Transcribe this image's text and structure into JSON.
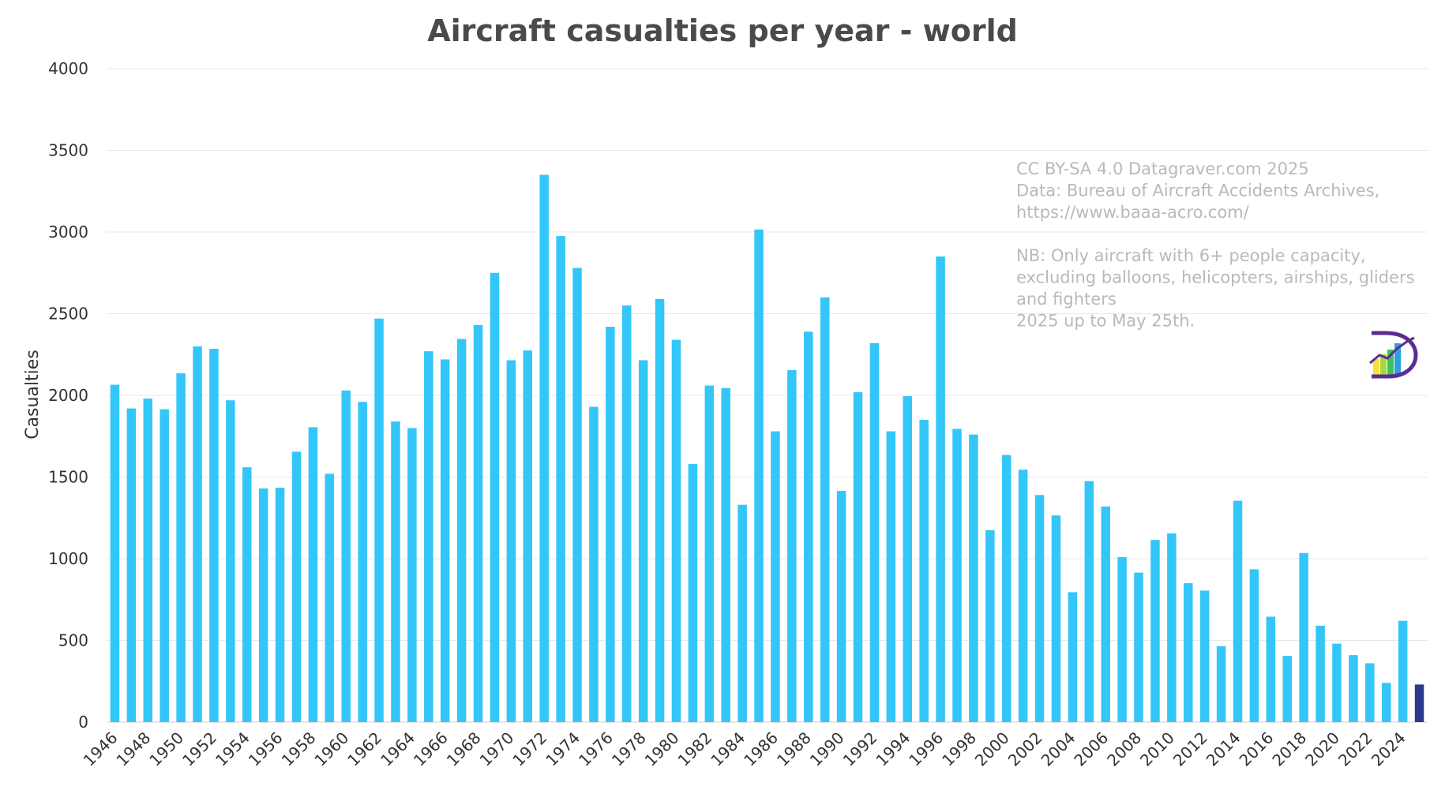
{
  "chart_data": {
    "type": "bar",
    "title": "Aircraft casualties per year - world",
    "ylabel": "Casualties",
    "xlabel": "",
    "ylim": [
      0,
      4000
    ],
    "yticks": [
      0,
      500,
      1000,
      1500,
      2000,
      2500,
      3000,
      3500,
      4000
    ],
    "xtick_every": 2,
    "grid": true,
    "colors": {
      "bar": "#33c6f9",
      "partial_year_bar": "#2b3a8f",
      "grid": "#e8e8e8"
    },
    "partial_category": "2025",
    "categories": [
      "1946",
      "1947",
      "1948",
      "1949",
      "1950",
      "1951",
      "1952",
      "1953",
      "1954",
      "1955",
      "1956",
      "1957",
      "1958",
      "1959",
      "1960",
      "1961",
      "1962",
      "1963",
      "1964",
      "1965",
      "1966",
      "1967",
      "1968",
      "1969",
      "1970",
      "1971",
      "1972",
      "1973",
      "1974",
      "1975",
      "1976",
      "1977",
      "1978",
      "1979",
      "1980",
      "1981",
      "1982",
      "1983",
      "1984",
      "1985",
      "1986",
      "1987",
      "1988",
      "1989",
      "1990",
      "1991",
      "1992",
      "1993",
      "1994",
      "1995",
      "1996",
      "1997",
      "1998",
      "1999",
      "2000",
      "2001",
      "2002",
      "2003",
      "2004",
      "2005",
      "2006",
      "2007",
      "2008",
      "2009",
      "2010",
      "2011",
      "2012",
      "2013",
      "2014",
      "2015",
      "2016",
      "2017",
      "2018",
      "2019",
      "2020",
      "2021",
      "2022",
      "2023",
      "2024",
      "2025"
    ],
    "values": [
      2065,
      1920,
      1980,
      1915,
      2135,
      2300,
      2285,
      1970,
      1560,
      1430,
      1435,
      1655,
      1805,
      1520,
      2030,
      1960,
      2470,
      1840,
      1800,
      2270,
      2220,
      2345,
      2430,
      2750,
      2215,
      2275,
      3350,
      2975,
      2780,
      1930,
      2420,
      2550,
      2215,
      2590,
      2340,
      1580,
      2060,
      2045,
      1330,
      3015,
      1780,
      2155,
      2390,
      2600,
      1415,
      2020,
      2320,
      1780,
      1995,
      1850,
      2850,
      1795,
      1760,
      1175,
      1635,
      1545,
      1390,
      1265,
      795,
      1475,
      1320,
      1010,
      915,
      1115,
      1155,
      850,
      805,
      465,
      1355,
      935,
      645,
      405,
      1035,
      590,
      480,
      410,
      360,
      240,
      620,
      230
    ]
  },
  "annotation": {
    "lines": [
      "CC BY-SA 4.0 Datagraver.com 2025",
      "Data: Bureau of Aircraft Accidents Archives,",
      "https://www.baaa-acro.com/",
      "",
      "NB: Only aircraft with 6+ people capacity,",
      "excluding balloons, helicopters, airships, gliders",
      "and fighters",
      "2025 up to May 25th."
    ]
  },
  "logo": {
    "name": "datagraver-logo",
    "colors": [
      "#f7e03a",
      "#a6d83c",
      "#3fbf5a",
      "#2f9fd8",
      "#5a2d91"
    ]
  }
}
